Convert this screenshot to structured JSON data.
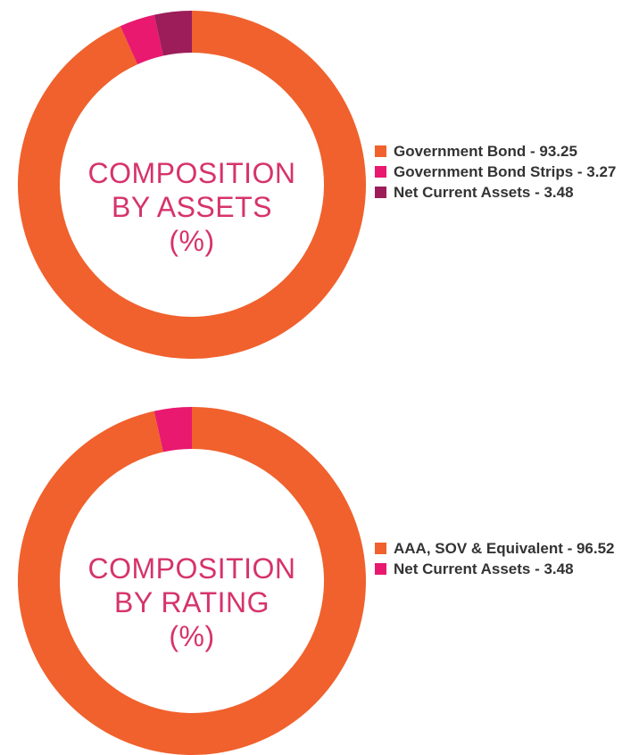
{
  "colors": {
    "orange": "#f0612d",
    "pink": "#e8196e",
    "maroon": "#9c1d5a",
    "label": "#d6336c"
  },
  "chart_data": [
    {
      "type": "pie",
      "style": "donut",
      "center_text": [
        "COMPOSITION",
        "BY ASSETS",
        "(%)"
      ],
      "legend_placement": "right",
      "slices": [
        {
          "label": "Government Bond - 93.25",
          "value": 93.25,
          "color": "#f0612d"
        },
        {
          "label": "Government Bond Strips - 3.27",
          "value": 3.27,
          "color": "#e8196e"
        },
        {
          "label": "Net Current Assets - 3.48",
          "value": 3.48,
          "color": "#9c1d5a"
        }
      ]
    },
    {
      "type": "pie",
      "style": "donut",
      "center_text": [
        "COMPOSITION",
        "BY RATING",
        "(%)"
      ],
      "legend_placement": "right",
      "slices": [
        {
          "label": "AAA, SOV & Equivalent - 96.52",
          "value": 96.52,
          "color": "#f0612d"
        },
        {
          "label": "Net Current Assets - 3.48",
          "value": 3.48,
          "color": "#e8196e"
        }
      ]
    }
  ]
}
